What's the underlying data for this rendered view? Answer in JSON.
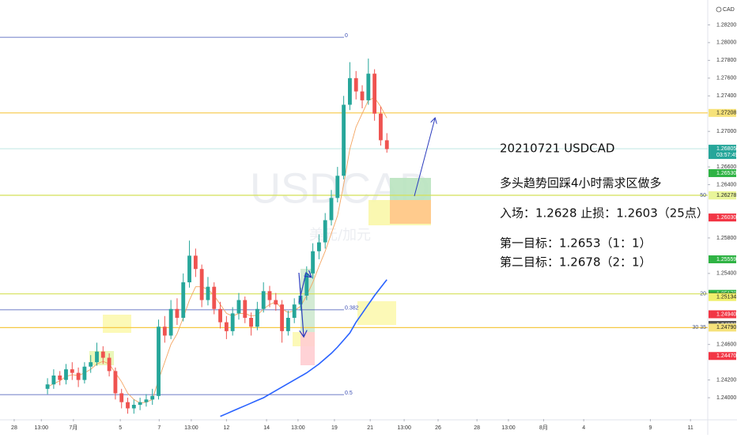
{
  "chart_data": {
    "type": "candlestick",
    "symbol": "CAD",
    "watermark": "USDCAD",
    "watermark_sub": "美元/加元",
    "notes": [
      "20210721 USDCAD",
      "多头趋势回踩4小时需求区做多",
      "入场：1.2628 止损：1.2603（25点）",
      "第一目标：1.2653（1：1）",
      "第二目标：1.2678（2：1）"
    ],
    "up_color": "#26a69a",
    "down_color": "#ef5350",
    "x": [
      0,
      1,
      2,
      3,
      4,
      5,
      6,
      7,
      8,
      9,
      10,
      11,
      12,
      13,
      14,
      15,
      16,
      17,
      18,
      19,
      20,
      21,
      22,
      23,
      24,
      25,
      26,
      27,
      28,
      29,
      30,
      31,
      32,
      33,
      34,
      35,
      36,
      37,
      38,
      39,
      40,
      41,
      42,
      43,
      44,
      45,
      46,
      47,
      48,
      49,
      50,
      51,
      52,
      53,
      54,
      55
    ],
    "open": [
      1.241,
      1.2415,
      1.2425,
      1.242,
      1.2432,
      1.2428,
      1.242,
      1.2435,
      1.244,
      1.2452,
      1.2445,
      1.243,
      1.2405,
      1.2395,
      1.2388,
      1.2392,
      1.2395,
      1.2398,
      1.2402,
      1.248,
      1.247,
      1.25,
      1.249,
      1.253,
      1.256,
      1.2545,
      1.251,
      1.2525,
      1.25,
      1.2485,
      1.2475,
      1.2495,
      1.251,
      1.249,
      1.248,
      1.25,
      1.252,
      1.251,
      1.2505,
      1.2475,
      1.249,
      1.2505,
      1.2515,
      1.254,
      1.2565,
      1.2575,
      1.26,
      1.2625,
      1.265,
      1.273,
      1.276,
      1.2745,
      1.2735,
      1.2765,
      1.272,
      1.269
    ],
    "high": [
      1.2422,
      1.2432,
      1.243,
      1.2438,
      1.244,
      1.2434,
      1.244,
      1.2448,
      1.2462,
      1.2458,
      1.245,
      1.2434,
      1.241,
      1.24,
      1.2398,
      1.24,
      1.2404,
      1.241,
      1.2488,
      1.2492,
      1.251,
      1.2512,
      1.254,
      1.2577,
      1.2568,
      1.255,
      1.2536,
      1.253,
      1.2508,
      1.2492,
      1.2502,
      1.2518,
      1.2514,
      1.2496,
      1.2508,
      1.253,
      1.2526,
      1.2518,
      1.251,
      1.2498,
      1.2512,
      1.2524,
      1.2548,
      1.2574,
      1.2584,
      1.2608,
      1.2634,
      1.266,
      1.274,
      1.2778,
      1.2768,
      1.2752,
      1.2782,
      1.277,
      1.2728,
      1.2698
    ],
    "low": [
      1.2404,
      1.241,
      1.2414,
      1.2415,
      1.242,
      1.2412,
      1.2416,
      1.2428,
      1.2436,
      1.2438,
      1.2424,
      1.2398,
      1.2388,
      1.2382,
      1.2382,
      1.2386,
      1.239,
      1.2392,
      1.2398,
      1.2462,
      1.2466,
      1.2482,
      1.2486,
      1.2524,
      1.2536,
      1.2502,
      1.2504,
      1.2494,
      1.2478,
      1.2466,
      1.247,
      1.2488,
      1.2484,
      1.247,
      1.2476,
      1.2496,
      1.2502,
      1.2498,
      1.2462,
      1.247,
      1.2484,
      1.2498,
      1.251,
      1.2534,
      1.2556,
      1.2568,
      1.2594,
      1.262,
      1.2646,
      1.2724,
      1.2736,
      1.2726,
      1.273,
      1.2712,
      1.2684,
      1.2676
    ],
    "close": [
      1.2415,
      1.2425,
      1.242,
      1.2432,
      1.2428,
      1.242,
      1.2435,
      1.244,
      1.2452,
      1.2445,
      1.243,
      1.2405,
      1.2395,
      1.2388,
      1.2392,
      1.2395,
      1.2398,
      1.2402,
      1.248,
      1.247,
      1.25,
      1.249,
      1.253,
      1.256,
      1.2545,
      1.251,
      1.2525,
      1.25,
      1.2485,
      1.2475,
      1.2495,
      1.251,
      1.249,
      1.248,
      1.25,
      1.252,
      1.251,
      1.2505,
      1.2475,
      1.249,
      1.2505,
      1.2515,
      1.254,
      1.2565,
      1.2575,
      1.26,
      1.2625,
      1.265,
      1.273,
      1.276,
      1.2745,
      1.2735,
      1.2765,
      1.272,
      1.269,
      1.268
    ],
    "lines": [
      {
        "color": "#f4a460",
        "values": [
          1.2412,
          1.2416,
          1.2419,
          1.2424,
          1.2426,
          1.2425,
          1.2428,
          1.2432,
          1.2438,
          1.2441,
          1.2438,
          1.2428,
          1.2418,
          1.2405,
          1.2398,
          1.2394,
          1.2395,
          1.2398,
          1.242,
          1.244,
          1.246,
          1.2472,
          1.249,
          1.251,
          1.2525,
          1.2525,
          1.2522,
          1.2515,
          1.2505,
          1.2495,
          1.2492,
          1.2495,
          1.2495,
          1.2492,
          1.2493,
          1.25,
          1.2505,
          1.2508,
          1.25,
          1.2496,
          1.2498,
          1.2503,
          1.2515,
          1.253,
          1.2548,
          1.2565,
          1.2585,
          1.2605,
          1.264,
          1.268,
          1.2705,
          1.272,
          1.2735,
          1.2738,
          1.2728,
          1.2715
        ]
      },
      {
        "color": "#2962ff",
        "values": [
          null,
          null,
          null,
          null,
          null,
          null,
          null,
          null,
          null,
          null,
          null,
          null,
          null,
          null,
          null,
          null,
          null,
          null,
          null,
          null,
          null,
          null,
          null,
          null,
          null,
          null,
          null,
          null,
          1.2379,
          1.2382,
          1.2385,
          1.2388,
          1.2391,
          1.2394,
          1.2397,
          1.24,
          1.2404,
          1.2408,
          1.2412,
          1.2416,
          1.242,
          1.2424,
          1.2428,
          1.2433,
          1.2438,
          1.2444,
          1.245,
          1.2457,
          1.2465,
          1.2473,
          1.2485,
          1.2495,
          1.2505,
          1.2515,
          1.2524,
          1.2533
        ]
      }
    ],
    "levels": [
      {
        "value": 1.2806,
        "label": "0",
        "color": "#3f51b5"
      },
      {
        "value": 1.27208,
        "color": "#f6c945"
      },
      {
        "value": 1.2628,
        "label": "50",
        "color": "#d4e157"
      },
      {
        "value": 1.2517,
        "label": "20",
        "color": "#d4e157"
      },
      {
        "value": 1.2499,
        "label": "0.382",
        "color": "#3f51b5"
      },
      {
        "value": 1.2479,
        "label": "30 35",
        "color": "#f6c945"
      },
      {
        "value": 1.24035,
        "label": "0.5",
        "color": "#3f51b5"
      }
    ],
    "price_labels": [
      {
        "value": 1.27208,
        "label": "1.27208",
        "color": "#f6e27a"
      },
      {
        "value": 1.26805,
        "label": "1.26805",
        "color": "#26a69a"
      },
      {
        "value": 1.2653,
        "label": "1.26530",
        "color": "#2fb344"
      },
      {
        "value": 1.2628,
        "label": "1.26280",
        "color": "#f0ef6c"
      },
      {
        "value": 1.26278,
        "label": "1.26278",
        "color": "#e9f59a"
      },
      {
        "value": 1.2603,
        "label": "1.26030",
        "color": "#f23645"
      },
      {
        "value": 1.25559,
        "label": "1.25559",
        "color": "#2fb344"
      },
      {
        "value": 1.2517,
        "label": "1.25170",
        "color": "#2fb344"
      },
      {
        "value": 1.2514,
        "label": "1.25140",
        "color": "#1b5e20"
      },
      {
        "value": 1.25134,
        "label": "1.25134",
        "color": "#f0ef6c"
      },
      {
        "value": 1.2494,
        "label": "1.24940",
        "color": "#f23645"
      },
      {
        "value": 1.2482,
        "label": "1.24820",
        "color": "#555555"
      },
      {
        "value": 1.2479,
        "label": "1.24790",
        "color": "#f6e27a"
      },
      {
        "value": 1.2447,
        "label": "1.24470",
        "color": "#f23645"
      }
    ],
    "countdown": "03:57:49",
    "xlim": [
      -7.7,
      107
    ],
    "ylim": [
      1.2376,
      1.2848
    ],
    "yticks": [
      {
        "value": 1.282,
        "label": "1.28200"
      },
      {
        "value": 1.28,
        "label": "1.28000"
      },
      {
        "value": 1.278,
        "label": "1.27800"
      },
      {
        "value": 1.276,
        "label": "1.27600"
      },
      {
        "value": 1.274,
        "label": "1.27400"
      },
      {
        "value": 1.27,
        "label": "1.27000"
      },
      {
        "value": 1.266,
        "label": "1.26600"
      },
      {
        "value": 1.264,
        "label": "1.26400"
      },
      {
        "value": 1.258,
        "label": "1.25800"
      },
      {
        "value": 1.254,
        "label": "1.25400"
      },
      {
        "value": 1.246,
        "label": "1.24600"
      },
      {
        "value": 1.242,
        "label": "1.24200"
      },
      {
        "value": 1.24,
        "label": "1.24000"
      }
    ],
    "xticks": [
      {
        "value": -5.4,
        "label": "28"
      },
      {
        "value": -1.0,
        "label": "13:00"
      },
      {
        "value": 4.2,
        "label": "7月"
      },
      {
        "value": 11.8,
        "label": "5"
      },
      {
        "value": 18.1,
        "label": "7"
      },
      {
        "value": 23.3,
        "label": "13:00"
      },
      {
        "value": 29.0,
        "label": "12"
      },
      {
        "value": 35.5,
        "label": "14"
      },
      {
        "value": 40.6,
        "label": "13:00"
      },
      {
        "value": 46.5,
        "label": "19"
      },
      {
        "value": 52.3,
        "label": "21"
      },
      {
        "value": 57.8,
        "label": "13:00"
      },
      {
        "value": 63.3,
        "label": "26"
      },
      {
        "value": 69.6,
        "label": "28"
      },
      {
        "value": 74.7,
        "label": "13:00"
      },
      {
        "value": 80.4,
        "label": "8月"
      },
      {
        "value": 86.9,
        "label": "4"
      },
      {
        "value": 97.7,
        "label": "9"
      },
      {
        "value": 104.2,
        "label": "11"
      }
    ]
  }
}
